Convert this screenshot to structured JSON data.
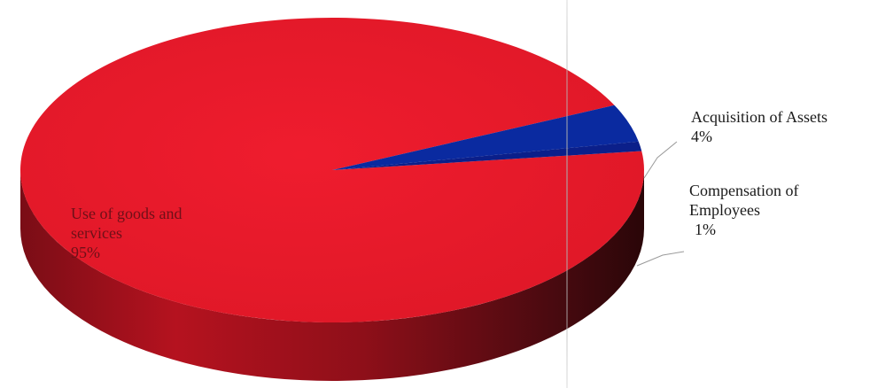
{
  "chart_data": {
    "type": "pie",
    "style": "3d",
    "title": "",
    "slices": [
      {
        "label_lines": [
          "Use of goods and",
          "services"
        ],
        "value": 95,
        "percent_label": "95%",
        "color": "#e31b2b"
      },
      {
        "label_lines": [
          "Acquisition of Assets"
        ],
        "value": 4,
        "percent_label": "4%",
        "color": "#0a2aa0"
      },
      {
        "label_lines": [
          "Compensation of",
          "Employees"
        ],
        "value": 1,
        "percent_label": "1%",
        "color": "#0b1f8a"
      }
    ],
    "legend": "none"
  }
}
